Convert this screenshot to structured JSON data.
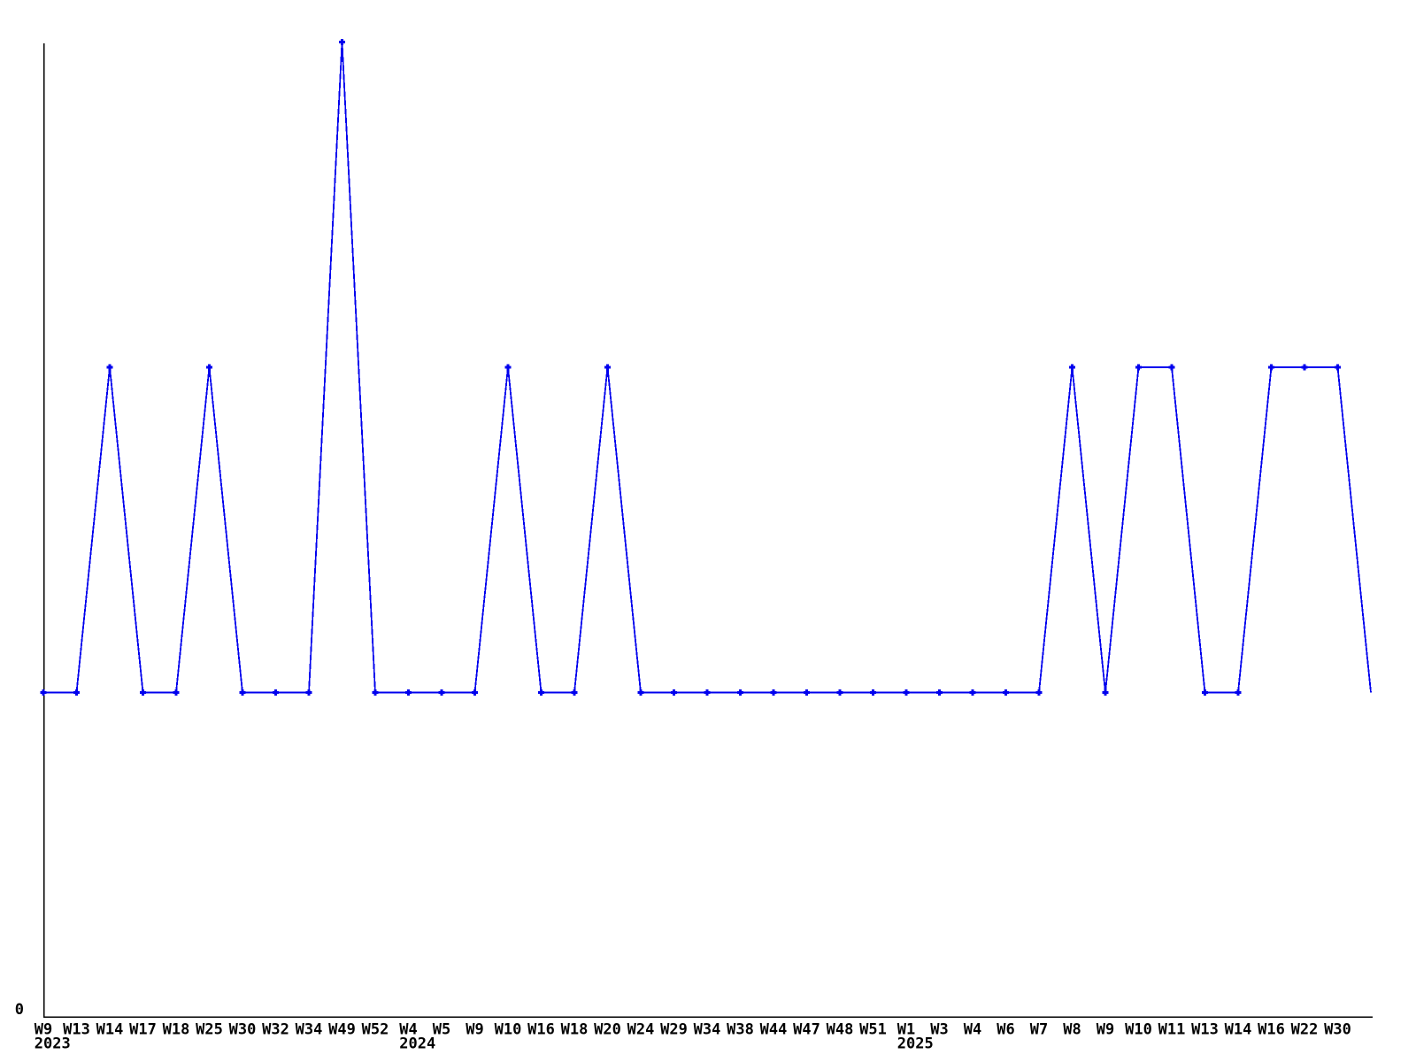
{
  "chart_data": {
    "type": "line",
    "title": "",
    "xlabel": "",
    "ylabel": "",
    "x_labels": [
      "W9",
      "W13",
      "W14",
      "W17",
      "W18",
      "W25",
      "W30",
      "W32",
      "W34",
      "W49",
      "W52",
      "W4",
      "W5",
      "W9",
      "W10",
      "W16",
      "W18",
      "W20",
      "W24",
      "W29",
      "W34",
      "W38",
      "W44",
      "W47",
      "W48",
      "W51",
      "W1",
      "W3",
      "W4",
      "W6",
      "W7",
      "W8",
      "W9",
      "W10",
      "W11",
      "W13",
      "W14",
      "W16",
      "W22",
      "W30",
      ""
    ],
    "x_year_markers": [
      {
        "index": 0,
        "label": "2023"
      },
      {
        "index": 11,
        "label": "2024"
      },
      {
        "index": 26,
        "label": "2025"
      }
    ],
    "values": [
      1,
      1,
      2,
      1,
      1,
      2,
      1,
      1,
      1,
      3,
      1,
      1,
      1,
      1,
      2,
      1,
      1,
      2,
      1,
      1,
      1,
      1,
      1,
      1,
      1,
      1,
      1,
      1,
      1,
      1,
      1,
      2,
      1,
      2,
      2,
      1,
      1,
      2,
      2,
      2,
      1
    ],
    "ylim": [
      0,
      3
    ],
    "y_tick_labels": [
      "0"
    ],
    "grid": false,
    "legend": false,
    "marker": "plus",
    "last_point_has_marker": false,
    "colors": {
      "line": "#0000ee",
      "axis": "#000000",
      "text": "#000000",
      "background": "#ffffff"
    }
  }
}
